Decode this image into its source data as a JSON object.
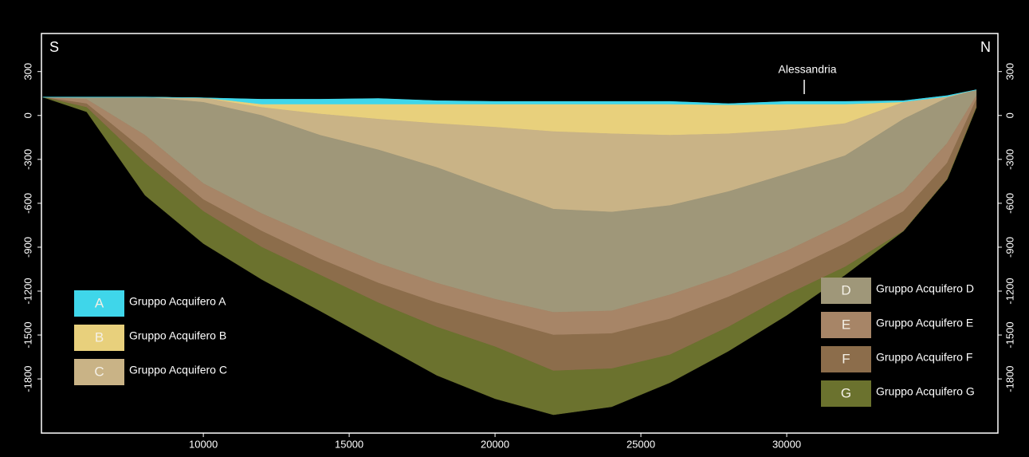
{
  "chart_data": {
    "type": "layers",
    "xlim": [
      4450,
      37240
    ],
    "xticks": [
      10000,
      15000,
      20000,
      25000,
      30000
    ],
    "ylim": [
      -2170,
      560
    ],
    "yticks": [
      300,
      0,
      -300,
      -600,
      -900,
      -1200,
      -1500,
      -1800
    ],
    "left_label": "S",
    "right_label": "N",
    "annotation": {
      "text": "Alessandria",
      "x": 30600
    },
    "x": [
      4500,
      6000,
      8000,
      10000,
      12000,
      14000,
      16000,
      18000,
      20000,
      22000,
      24000,
      26000,
      28000,
      30000,
      32000,
      34000,
      35500,
      36500
    ],
    "ground": [
      125,
      125,
      125,
      120,
      110,
      110,
      115,
      100,
      95,
      95,
      95,
      95,
      80,
      95,
      95,
      100,
      135,
      175
    ],
    "series": [
      {
        "code": "A",
        "name": "Gruppo Acquifero A",
        "color": "#3fd6ea",
        "values": [
          125,
          125,
          125,
          120,
          75,
          75,
          75,
          75,
          75,
          75,
          75,
          75,
          70,
          75,
          75,
          90,
          125,
          175
        ]
      },
      {
        "code": "B",
        "name": "Gruppo Acquifero B",
        "color": "#e8d07c",
        "values": [
          125,
          125,
          125,
          120,
          55,
          10,
          -25,
          -55,
          -80,
          -110,
          -125,
          -135,
          -125,
          -100,
          -55,
          90,
          125,
          175
        ]
      },
      {
        "code": "C",
        "name": "Gruppo Acquifero C",
        "color": "#c9b386",
        "values": [
          125,
          125,
          125,
          90,
          0,
          -135,
          -235,
          -355,
          -500,
          -640,
          -660,
          -615,
          -520,
          -400,
          -275,
          -25,
          120,
          175
        ]
      },
      {
        "code": "D",
        "name": "Gruppo Acquifero D",
        "color": "#9f9779",
        "values": [
          125,
          110,
          -135,
          -465,
          -670,
          -845,
          -1010,
          -1145,
          -1255,
          -1345,
          -1335,
          -1225,
          -1090,
          -925,
          -735,
          -520,
          -190,
          135
        ]
      },
      {
        "code": "E",
        "name": "Gruppo Acquifero E",
        "color": "#a78567",
        "values": [
          125,
          80,
          -245,
          -575,
          -790,
          -980,
          -1145,
          -1280,
          -1390,
          -1500,
          -1490,
          -1390,
          -1240,
          -1065,
          -875,
          -655,
          -325,
          110
        ]
      },
      {
        "code": "F",
        "name": "Gruppo Acquifero F",
        "color": "#8c6d4b",
        "values": [
          125,
          55,
          -325,
          -655,
          -900,
          -1090,
          -1280,
          -1445,
          -1580,
          -1745,
          -1730,
          -1635,
          -1445,
          -1225,
          -1035,
          -790,
          -435,
          55
        ]
      },
      {
        "code": "G",
        "name": "Gruppo Acquifero G",
        "color": "#6b722e",
        "values": [
          125,
          25,
          -545,
          -875,
          -1120,
          -1335,
          -1555,
          -1775,
          -1935,
          -2045,
          -1990,
          -1825,
          -1610,
          -1365,
          -1090,
          -790,
          -435,
          55
        ]
      }
    ]
  }
}
